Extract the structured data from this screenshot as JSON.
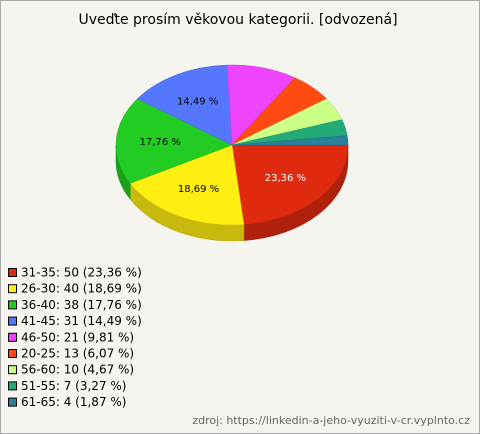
{
  "chart_data": {
    "type": "pie3d",
    "title": "Uveďte prosím věkovou kategorii. [odvozená]",
    "categories": [
      "31-35",
      "26-30",
      "36-40",
      "41-45",
      "46-50",
      "20-25",
      "56-60",
      "51-55",
      "61-65"
    ],
    "values": [
      23.36,
      18.69,
      17.76,
      14.49,
      9.81,
      6.07,
      4.67,
      3.27,
      1.87
    ],
    "value_labels": [
      "23,36 %",
      "18,69 %",
      "17,76 %",
      "14,49 %",
      null,
      null,
      null,
      null,
      null
    ],
    "legend_labels": [
      "31-35: 50 (23,36 %)",
      "26-30: 40 (18,69 %)",
      "36-40: 38 (17,76 %)",
      "41-45: 31 (14,49 %)",
      "46-50: 21 (9,81 %)",
      "20-25: 13 (6,07 %)",
      "56-60: 10 (4,67 %)",
      "51-55: 7 (3,27 %)",
      "61-65: 4 (1,87 %)"
    ],
    "colors": [
      "#e02a10",
      "#ffee11",
      "#22cc22",
      "#5577ff",
      "#ee44ff",
      "#ff4a11",
      "#ccff88",
      "#22aa77",
      "#2a7f99"
    ],
    "source": "zdroj: https://linkedin-a-jeho-vyuziti-v-cr.vyplnto.cz"
  }
}
